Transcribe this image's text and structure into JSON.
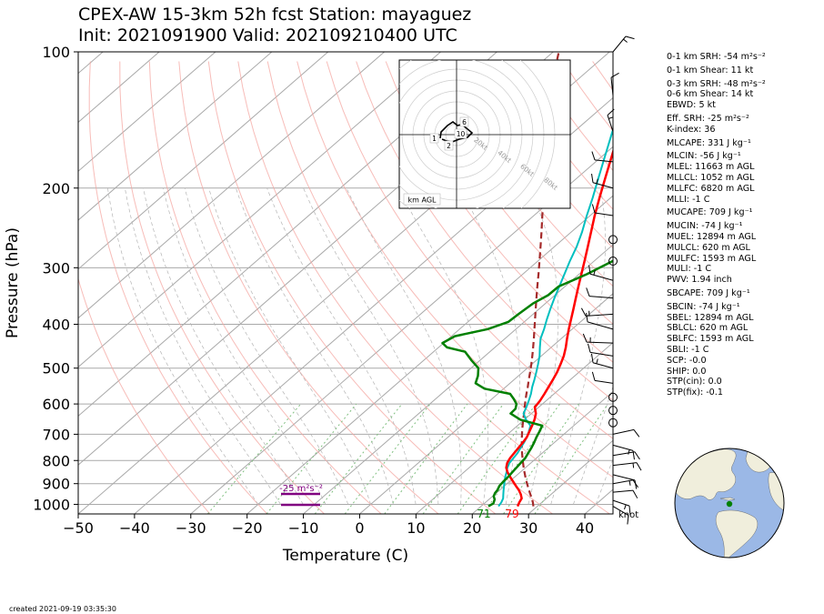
{
  "title_line1": "CPEX-AW 15-3km  52h fcst  Station: mayaguez",
  "title_line2": "Init: 2021091900  Valid: 202109210400 UTC",
  "created": "created 2021-09-19 03:35:30",
  "colors": {
    "temperature": "#ff0000",
    "dewpoint": "#008000",
    "wetbulb": "#00bfbf",
    "parcel": "#a52a2a",
    "srh_bar": "#800080",
    "isobar": "#a9a9a9",
    "dry_adiabat": "#f4a6a0",
    "mixing_ratio": "#7fbf7f",
    "globe_ocean": "#9bb8e6",
    "globe_land": "#f0eedc",
    "station_marker": "#008000"
  },
  "stats": [
    "0-1 km SRH: -54 m²s⁻²",
    "0-1 km Shear: 11 kt",
    "0-3 km SRH: -48 m²s⁻²",
    "0-6 km Shear: 14 kt",
    "EBWD: 5 kt",
    "Eff. SRH: -25 m²s⁻²",
    "K-index: 36",
    "MLCAPE: 331 J kg⁻¹",
    "MLCIN: -56 J kg⁻¹",
    "MLEL: 11663 m AGL",
    "MLLCL: 1052 m AGL",
    "MLLFC: 6820 m AGL",
    "MLLI: -1 C",
    "MUCAPE: 709 J kg⁻¹",
    "MUCIN: -74 J kg⁻¹",
    "MUEL: 12894 m AGL",
    "MULCL: 620 m AGL",
    "MULFC: 1593 m AGL",
    "MULI: -1 C",
    "PWV: 1.94 inch",
    "SBCAPE: 709 J kg⁻¹",
    "SBCIN: -74 J kg⁻¹",
    "SBEL: 12894 m AGL",
    "SBLCL: 620 m AGL",
    "SBLFC: 1593 m AGL",
    "SBLI: -1 C",
    "SCP: -0.0",
    "SHIP: 0.0",
    "STP(cin): 0.0",
    "STP(fix): -0.1"
  ],
  "chart_data": {
    "type": "skewt",
    "xlabel": "Temperature (C)",
    "ylabel": "Pressure (hPa)",
    "xlim": [
      -50,
      45
    ],
    "ylim": [
      1050,
      100
    ],
    "x_ticks": [
      "−50",
      "−40",
      "−30",
      "−20",
      "−10",
      "0",
      "10",
      "20",
      "30",
      "40"
    ],
    "y_ticks": [
      "100",
      "200",
      "300",
      "400",
      "500",
      "600",
      "700",
      "800",
      "900",
      "1000"
    ],
    "x_tick_values": [
      -50,
      -40,
      -30,
      -20,
      -10,
      0,
      10,
      20,
      30,
      40
    ],
    "y_tick_values": [
      100,
      200,
      300,
      400,
      500,
      600,
      700,
      800,
      900,
      1000
    ],
    "surface_t_label": "79",
    "surface_td_label": "71",
    "srh_label": "-25 m²s⁻²",
    "wind_unit": "knot",
    "temperature": [
      [
        1010,
        26.5
      ],
      [
        990,
        26
      ],
      [
        970,
        25.6
      ],
      [
        950,
        24.6
      ],
      [
        930,
        23.4
      ],
      [
        910,
        22
      ],
      [
        890,
        20.6
      ],
      [
        870,
        19.2
      ],
      [
        850,
        17.8
      ],
      [
        830,
        16.6
      ],
      [
        810,
        15.8
      ],
      [
        790,
        15.3
      ],
      [
        770,
        15
      ],
      [
        750,
        14.7
      ],
      [
        730,
        14.4
      ],
      [
        710,
        14
      ],
      [
        690,
        13.3
      ],
      [
        670,
        12.6
      ],
      [
        650,
        11.8
      ],
      [
        630,
        10.8
      ],
      [
        610,
        9.3
      ],
      [
        590,
        8.9
      ],
      [
        570,
        8.3
      ],
      [
        550,
        7.6
      ],
      [
        530,
        6.9
      ],
      [
        510,
        6.1
      ],
      [
        490,
        5.1
      ],
      [
        470,
        4
      ],
      [
        450,
        2.6
      ],
      [
        430,
        1
      ],
      [
        410,
        -0.6
      ],
      [
        390,
        -2.2
      ],
      [
        370,
        -3.9
      ],
      [
        350,
        -5.7
      ],
      [
        330,
        -7.6
      ],
      [
        310,
        -9.6
      ],
      [
        290,
        -11.7
      ],
      [
        270,
        -14
      ],
      [
        250,
        -16.5
      ],
      [
        230,
        -19.2
      ],
      [
        210,
        -22
      ],
      [
        190,
        -25
      ],
      [
        170,
        -28.3
      ],
      [
        150,
        -32
      ],
      [
        130,
        -36
      ],
      [
        115,
        -39.5
      ],
      [
        100,
        -43
      ]
    ],
    "dewpoint": [
      [
        1010,
        21.3
      ],
      [
        995,
        21.6
      ],
      [
        975,
        21
      ],
      [
        960,
        20.2
      ],
      [
        945,
        19.8
      ],
      [
        930,
        19.6
      ],
      [
        910,
        19.1
      ],
      [
        890,
        18.9
      ],
      [
        870,
        18.8
      ],
      [
        850,
        18.6
      ],
      [
        830,
        18.4
      ],
      [
        810,
        18.2
      ],
      [
        790,
        18
      ],
      [
        770,
        17.5
      ],
      [
        750,
        17
      ],
      [
        730,
        16.4
      ],
      [
        710,
        15.7
      ],
      [
        690,
        15.1
      ],
      [
        670,
        14.4
      ],
      [
        650,
        9.3
      ],
      [
        630,
        6.3
      ],
      [
        615,
        6.2
      ],
      [
        600,
        5.4
      ],
      [
        585,
        3.9
      ],
      [
        570,
        2.2
      ],
      [
        555,
        -3.4
      ],
      [
        540,
        -6.1
      ],
      [
        520,
        -7.2
      ],
      [
        500,
        -8.7
      ],
      [
        480,
        -11.6
      ],
      [
        460,
        -14.4
      ],
      [
        450,
        -18.5
      ],
      [
        440,
        -20.2
      ],
      [
        425,
        -19.4
      ],
      [
        410,
        -15
      ],
      [
        395,
        -12.8
      ],
      [
        380,
        -12.6
      ],
      [
        360,
        -12.2
      ],
      [
        345,
        -11.2
      ],
      [
        330,
        -11.1
      ],
      [
        310,
        -8.6
      ],
      [
        290,
        -6.7
      ],
      [
        270,
        -5.7
      ],
      [
        260,
        -7.3
      ],
      [
        240,
        -10
      ],
      [
        225,
        -12.7
      ],
      [
        212,
        -15
      ],
      [
        200,
        -18.4
      ],
      [
        190,
        -21
      ],
      [
        180,
        -23.8
      ],
      [
        170,
        -27.2
      ],
      [
        160,
        -30.3
      ],
      [
        150,
        -32.8
      ],
      [
        140,
        -34.8
      ],
      [
        130,
        -37
      ],
      [
        120,
        -39.2
      ],
      [
        110,
        -40
      ],
      [
        100,
        -41.4
      ]
    ],
    "wetbulb": [
      [
        1010,
        23.1
      ],
      [
        990,
        22.8
      ],
      [
        970,
        22.3
      ],
      [
        950,
        21.5
      ],
      [
        930,
        20.7
      ],
      [
        910,
        19.9
      ],
      [
        890,
        19.1
      ],
      [
        870,
        18.3
      ],
      [
        850,
        17.6
      ],
      [
        830,
        16.8
      ],
      [
        810,
        16.2
      ],
      [
        790,
        15.9
      ],
      [
        770,
        15.6
      ],
      [
        750,
        15.1
      ],
      [
        730,
        14.6
      ],
      [
        710,
        14
      ],
      [
        690,
        13.2
      ],
      [
        670,
        12.3
      ],
      [
        650,
        10.3
      ],
      [
        630,
        8.6
      ],
      [
        610,
        7.8
      ],
      [
        590,
        6.9
      ],
      [
        570,
        5.9
      ],
      [
        550,
        4.7
      ],
      [
        530,
        3.6
      ],
      [
        510,
        2.4
      ],
      [
        490,
        1.1
      ],
      [
        470,
        -0.3
      ],
      [
        450,
        -2
      ],
      [
        430,
        -3.7
      ],
      [
        410,
        -5
      ],
      [
        390,
        -6.5
      ],
      [
        370,
        -8
      ],
      [
        350,
        -9.5
      ],
      [
        330,
        -11
      ],
      [
        310,
        -12.6
      ],
      [
        290,
        -14.3
      ],
      [
        270,
        -16
      ],
      [
        250,
        -18.1
      ],
      [
        230,
        -20.6
      ],
      [
        210,
        -23.2
      ],
      [
        190,
        -26.2
      ],
      [
        170,
        -29.5
      ],
      [
        150,
        -33.2
      ],
      [
        130,
        -37.2
      ],
      [
        115,
        -39.8
      ],
      [
        100,
        -42
      ]
    ],
    "parcel": [
      [
        1010,
        29.3
      ],
      [
        990,
        28.4
      ],
      [
        970,
        27.4
      ],
      [
        950,
        26.3
      ],
      [
        930,
        25.2
      ],
      [
        910,
        24.1
      ],
      [
        890,
        23
      ],
      [
        870,
        21.9
      ],
      [
        850,
        20.8
      ],
      [
        830,
        19.7
      ],
      [
        810,
        18.6
      ],
      [
        790,
        17.5
      ],
      [
        770,
        16.4
      ],
      [
        750,
        15.3
      ],
      [
        730,
        14.2
      ],
      [
        710,
        13.1
      ],
      [
        690,
        12
      ],
      [
        670,
        10.9
      ],
      [
        650,
        9.8
      ],
      [
        630,
        8.7
      ],
      [
        610,
        7.5
      ],
      [
        590,
        6.3
      ],
      [
        570,
        5.1
      ],
      [
        550,
        3.9
      ],
      [
        530,
        2.6
      ],
      [
        510,
        1.3
      ],
      [
        490,
        -0.1
      ],
      [
        470,
        -1.6
      ],
      [
        450,
        -3.2
      ],
      [
        430,
        -4.9
      ],
      [
        410,
        -6.7
      ],
      [
        390,
        -8.6
      ],
      [
        370,
        -10.6
      ],
      [
        350,
        -12.7
      ],
      [
        330,
        -14.9
      ],
      [
        310,
        -17.2
      ],
      [
        290,
        -19.7
      ],
      [
        270,
        -22.4
      ],
      [
        250,
        -25.3
      ],
      [
        230,
        -28.5
      ],
      [
        210,
        -32
      ],
      [
        190,
        -35.8
      ],
      [
        170,
        -40
      ],
      [
        150,
        -44.7
      ],
      [
        130,
        -50
      ],
      [
        115,
        -54.5
      ],
      [
        100,
        -59
      ]
    ],
    "hodograph_label": "km AGL",
    "hodograph_rings_label": [
      "20kt",
      "40kt",
      "60kt",
      "80kt"
    ],
    "hodograph_height_labels": [
      "1",
      "2",
      "6",
      "10"
    ]
  }
}
